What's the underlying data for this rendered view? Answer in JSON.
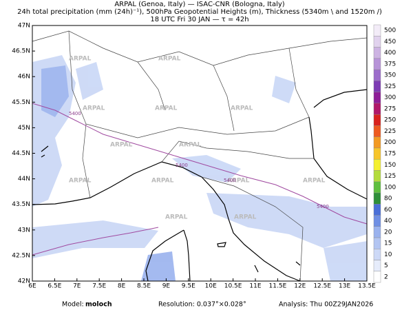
{
  "header": {
    "line1": "ARPAL (Genoa, Italy)  —  ISAC-CNR (Bologna, Italy)",
    "line2": "24h total precipitation (mm (24h)⁻¹), 500hPa Geopotential Heights (m), Thickness (5340m \\ and 1520m /)",
    "line3": "18 UTC Fri 30 JAN  —  τ = 42h"
  },
  "map": {
    "lon_ticks": [
      {
        "value": 6,
        "label": "6E"
      },
      {
        "value": 6.5,
        "label": "6.5E"
      },
      {
        "value": 7,
        "label": "7E"
      },
      {
        "value": 7.5,
        "label": "7.5E"
      },
      {
        "value": 8,
        "label": "8E"
      },
      {
        "value": 8.5,
        "label": "8.5E"
      },
      {
        "value": 9,
        "label": "9E"
      },
      {
        "value": 9.5,
        "label": "9.5E"
      },
      {
        "value": 10,
        "label": "10E"
      },
      {
        "value": 10.5,
        "label": "10.5E"
      },
      {
        "value": 11,
        "label": "11E"
      },
      {
        "value": 11.5,
        "label": "11.5E"
      },
      {
        "value": 12,
        "label": "12E"
      },
      {
        "value": 12.5,
        "label": "12.5E"
      },
      {
        "value": 13,
        "label": "13E"
      },
      {
        "value": 13.5,
        "label": "13.5E"
      }
    ],
    "lat_ticks": [
      {
        "value": 42,
        "label": "42N"
      },
      {
        "value": 42.5,
        "label": "42.5N"
      },
      {
        "value": 43,
        "label": "43N"
      },
      {
        "value": 43.5,
        "label": "43.5N"
      },
      {
        "value": 44,
        "label": "44N"
      },
      {
        "value": 44.5,
        "label": "44.5N"
      },
      {
        "value": 45,
        "label": "45N"
      },
      {
        "value": 45.5,
        "label": "45.5N"
      },
      {
        "value": 46,
        "label": "46N"
      },
      {
        "value": 46.5,
        "label": "46.5N"
      },
      {
        "value": 47,
        "label": "47N"
      }
    ],
    "watermark": "ARPAL",
    "contour_label": "5400"
  },
  "colorbar": {
    "levels": [
      {
        "value": 2,
        "color": "#ffffff"
      },
      {
        "value": 5,
        "color": "#e6ecfb"
      },
      {
        "value": 10,
        "color": "#cdd9f7"
      },
      {
        "value": 15,
        "color": "#b3c5f2"
      },
      {
        "value": 20,
        "color": "#9ab2ee"
      },
      {
        "value": 40,
        "color": "#6f8fe4"
      },
      {
        "value": 60,
        "color": "#4a6fd8"
      },
      {
        "value": 80,
        "color": "#2f8f3a"
      },
      {
        "value": 100,
        "color": "#5fbf3f"
      },
      {
        "value": 125,
        "color": "#b4dc3c"
      },
      {
        "value": 150,
        "color": "#f4f030"
      },
      {
        "value": 175,
        "color": "#f7c52a"
      },
      {
        "value": 200,
        "color": "#f39a22"
      },
      {
        "value": 225,
        "color": "#ee5a1f"
      },
      {
        "value": 250,
        "color": "#d9221d"
      },
      {
        "value": 275,
        "color": "#b0186a"
      },
      {
        "value": 300,
        "color": "#8e1d98"
      },
      {
        "value": 325,
        "color": "#7d3bb4"
      },
      {
        "value": 350,
        "color": "#9c6ccb"
      },
      {
        "value": 375,
        "color": "#b793d8"
      },
      {
        "value": 400,
        "color": "#cdb3e3"
      },
      {
        "value": 450,
        "color": "#e1d2ee"
      },
      {
        "value": 500,
        "color": "#f3ecf8"
      }
    ]
  },
  "footer": {
    "model_label": "Model:",
    "model": "moloch",
    "resolution": "Resolution: 0.037°×0.028°",
    "analysis": "Analysis: Thu 00Z29JAN2026"
  }
}
